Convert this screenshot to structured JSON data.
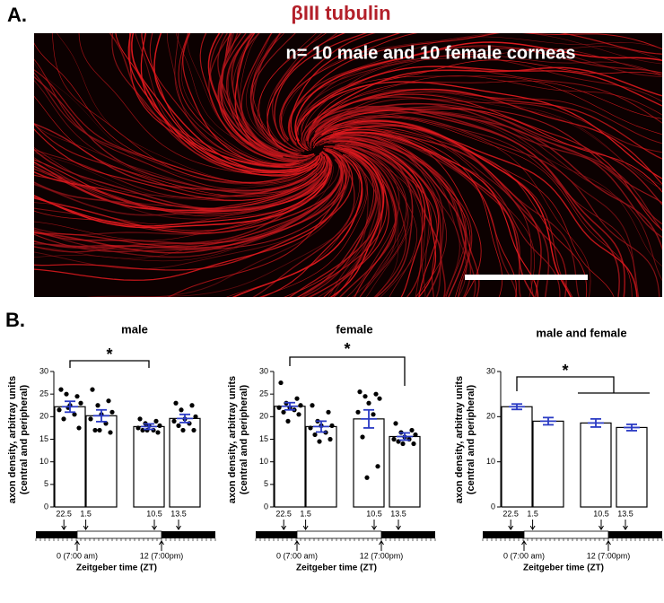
{
  "panel_a": {
    "label": "A.",
    "title": "βIII tubulin",
    "note": "n= 10 male and 10 female corneas"
  },
  "panel_b_label": "B.",
  "chart_data": [
    {
      "type": "bar",
      "title": "male",
      "ylabel": [
        "axon density, arbitray units",
        "(central and peripheral)"
      ],
      "categories": [
        "22.5",
        "1.5",
        "10.5",
        "13.5"
      ],
      "values": [
        22.2,
        20.2,
        17.8,
        19.6
      ],
      "errors": [
        1.2,
        1.3,
        0.6,
        0.9
      ],
      "points": [
        [
          26,
          24.5,
          25,
          23,
          22.5,
          21.5,
          20.5,
          19.5,
          17.5,
          22
        ],
        [
          26,
          23.5,
          22.5,
          21,
          20.5,
          19.5,
          18.5,
          17,
          16.5,
          17
        ],
        [
          19.5,
          19,
          18.5,
          18,
          18,
          17.5,
          17,
          17,
          16.5,
          17
        ],
        [
          23,
          22.5,
          21.5,
          20,
          19.5,
          19,
          18.5,
          18,
          17,
          17
        ]
      ],
      "color": "#ffffff",
      "error_color": "#2b3bc4",
      "ylim": [
        0,
        30
      ],
      "yticks": [
        0,
        5,
        10,
        15,
        20,
        25,
        30
      ],
      "annotation": "*",
      "markers": [
        "0 (7:00 am)",
        "12 (7:00pm)"
      ],
      "xlabel": "Zeitgeber time (ZT)"
    },
    {
      "type": "bar",
      "title": "female",
      "ylabel": [
        "axon density, arbitray units",
        "(central and peripheral)"
      ],
      "categories": [
        "22.5",
        "1.5",
        "10.5",
        "13.5"
      ],
      "values": [
        22.3,
        17.8,
        19.5,
        15.6
      ],
      "errors": [
        0.8,
        1.2,
        2.0,
        0.8
      ],
      "points": [
        [
          27.5,
          24,
          23,
          22.5,
          22,
          22,
          21.5,
          21,
          20.5,
          19
        ],
        [
          22.5,
          21,
          19,
          18,
          18,
          17.5,
          16.5,
          16,
          15,
          14.5
        ],
        [
          25.5,
          25,
          24.5,
          24,
          23,
          21,
          20.5,
          15.5,
          9,
          6.5
        ],
        [
          18.5,
          17,
          16.5,
          16,
          15.5,
          15,
          15,
          14.5,
          14,
          14
        ]
      ],
      "color": "#ffffff",
      "error_color": "#2b3bc4",
      "ylim": [
        0,
        30
      ],
      "yticks": [
        0,
        5,
        10,
        15,
        20,
        25,
        30
      ],
      "annotation": "*",
      "markers": [
        "0 (7:00 am)",
        "12 (7:00pm)"
      ],
      "xlabel": "Zeitgeber time (ZT)"
    },
    {
      "type": "bar",
      "title": "male and female",
      "ylabel": [
        "axon density, arbitray units",
        "(central and peripheral)"
      ],
      "categories": [
        "22.5",
        "1.5",
        "10.5",
        "13.5"
      ],
      "values": [
        22.2,
        19.0,
        18.6,
        17.6
      ],
      "errors": [
        0.6,
        0.8,
        0.9,
        0.7
      ],
      "color": "#ffffff",
      "error_color": "#2b3bc4",
      "ylim": [
        0,
        30
      ],
      "yticks": [
        0,
        10,
        20,
        30
      ],
      "annotation": "*",
      "markers": [
        "0 (7:00 am)",
        "12 (7:00pm)"
      ],
      "xlabel": "Zeitgeber time (ZT)"
    }
  ]
}
